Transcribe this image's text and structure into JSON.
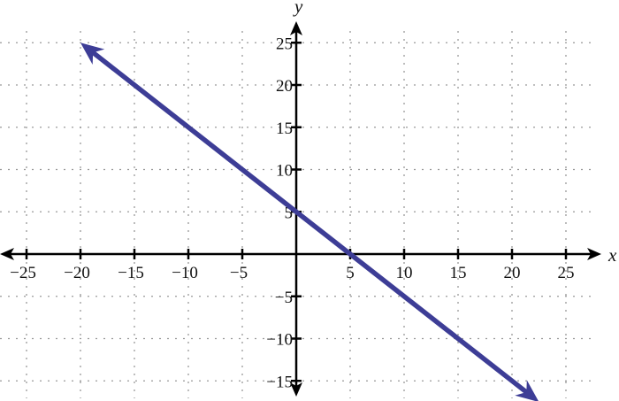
{
  "chart_data": {
    "type": "line",
    "title": "",
    "xlabel": "x",
    "ylabel": "y",
    "xlim": [
      -27.5,
      28.5
    ],
    "ylim": [
      -17.5,
      28
    ],
    "xticks": [
      -25,
      -20,
      -15,
      -10,
      -5,
      5,
      10,
      15,
      20,
      25
    ],
    "yticks": [
      -15,
      -10,
      -5,
      5,
      10,
      15,
      20,
      25
    ],
    "grid": true,
    "grid_style": "dotted",
    "series": [
      {
        "points": [
          [
            -20,
            25
          ],
          [
            22.5,
            -17.5
          ]
        ],
        "arrows": "both",
        "color": "#3d3d96"
      }
    ]
  },
  "colors": {
    "axis": "#000000",
    "grid": "#999999",
    "line": "#3d3d96"
  }
}
